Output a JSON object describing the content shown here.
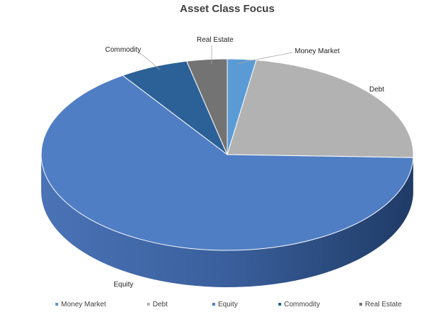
{
  "chart_data": {
    "type": "pie",
    "title": "Asset Class Focus",
    "legend_position": "bottom",
    "three_d": true,
    "categories": [
      "Money Market",
      "Debt",
      "Equity",
      "Commodity",
      "Real Estate"
    ],
    "values": [
      2.5,
      23.0,
      65.0,
      6.0,
      3.5
    ],
    "unit": "%",
    "colors": [
      "#5b9bd5",
      "#b2b2b2",
      "#4f7ec4",
      "#2c6197",
      "#737373"
    ]
  }
}
